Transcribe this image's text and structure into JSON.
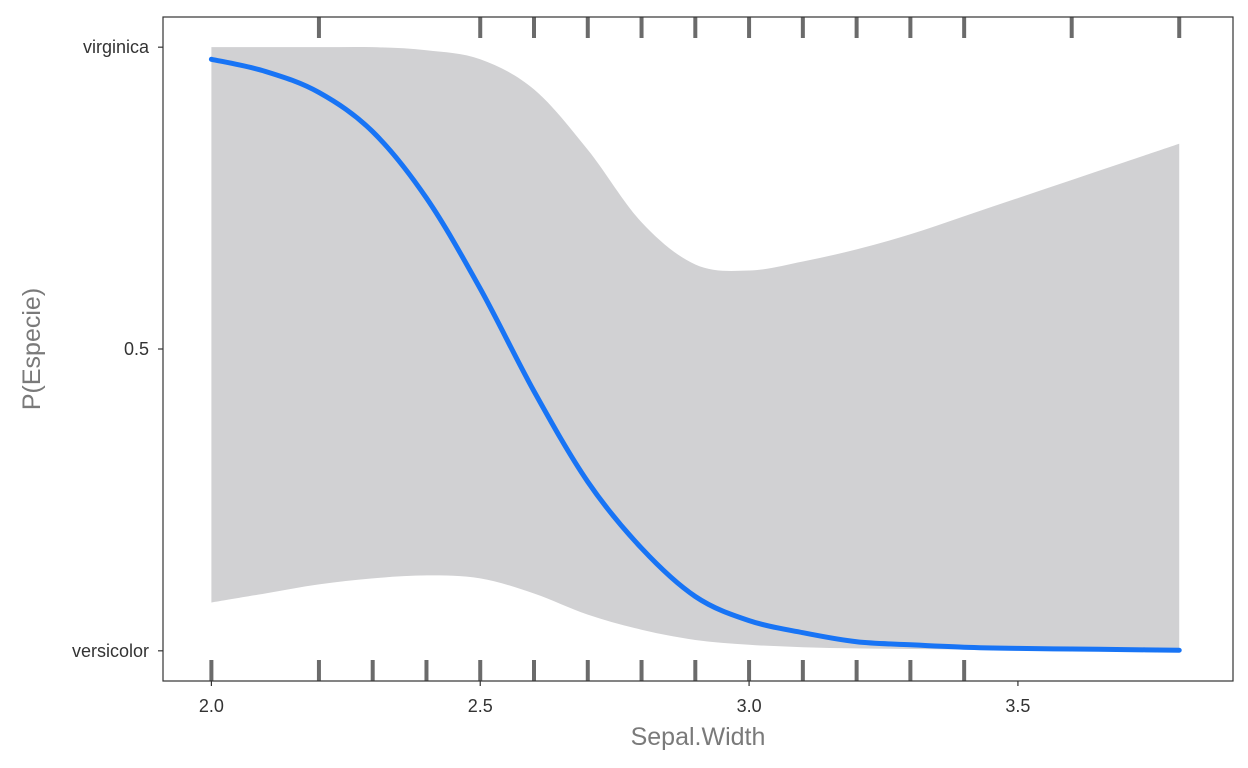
{
  "chart_data": {
    "type": "line",
    "title": "",
    "xlabel": "Sepal.Width",
    "ylabel": "P(Especie)",
    "xlim": [
      1.91,
      3.9
    ],
    "ylim": [
      -0.05,
      1.05
    ],
    "x_ticks": [
      {
        "value": 2.0,
        "label": "2.0"
      },
      {
        "value": 2.5,
        "label": "2.5"
      },
      {
        "value": 3.0,
        "label": "3.0"
      },
      {
        "value": 3.5,
        "label": "3.5"
      }
    ],
    "y_ticks": [
      {
        "value": 0.0,
        "label": "versicolor"
      },
      {
        "value": 0.5,
        "label": "0.5"
      },
      {
        "value": 1.0,
        "label": "virginica"
      }
    ],
    "grid": false,
    "legend": "none",
    "series": [
      {
        "x": [
          2.0,
          2.1,
          2.2,
          2.3,
          2.4,
          2.5,
          2.6,
          2.7,
          2.8,
          2.9,
          3.0,
          3.1,
          3.2,
          3.3,
          3.4,
          3.5,
          3.6,
          3.7,
          3.8
        ],
        "y": [
          0.98,
          0.96,
          0.925,
          0.86,
          0.75,
          0.6,
          0.43,
          0.28,
          0.17,
          0.09,
          0.05,
          0.03,
          0.015,
          0.01,
          0.006,
          0.004,
          0.003,
          0.002,
          0.001
        ],
        "color": "#1874f5"
      }
    ],
    "confidence_band": {
      "x": [
        2.0,
        2.1,
        2.2,
        2.3,
        2.4,
        2.5,
        2.6,
        2.7,
        2.8,
        2.9,
        3.0,
        3.1,
        3.2,
        3.3,
        3.4,
        3.5,
        3.6,
        3.7,
        3.8
      ],
      "lower": [
        0.08,
        0.095,
        0.11,
        0.12,
        0.125,
        0.12,
        0.095,
        0.06,
        0.035,
        0.018,
        0.01,
        0.006,
        0.004,
        0.003,
        0.002,
        0.001,
        0.001,
        0.0,
        0.0
      ],
      "upper": [
        1.0,
        1.0,
        1.0,
        1.0,
        0.995,
        0.98,
        0.93,
        0.83,
        0.71,
        0.64,
        0.63,
        0.645,
        0.665,
        0.69,
        0.72,
        0.75,
        0.78,
        0.81,
        0.84
      ],
      "color": "#d1d1d3"
    },
    "rug_top": [
      2.2,
      2.5,
      2.6,
      2.7,
      2.8,
      2.9,
      3.0,
      3.1,
      3.2,
      3.3,
      3.4,
      3.6,
      3.8
    ],
    "rug_bottom": [
      2.0,
      2.2,
      2.3,
      2.4,
      2.5,
      2.6,
      2.7,
      2.8,
      2.9,
      3.0,
      3.1,
      3.2,
      3.3,
      3.4
    ],
    "rug_color": "#6b6b6b"
  }
}
